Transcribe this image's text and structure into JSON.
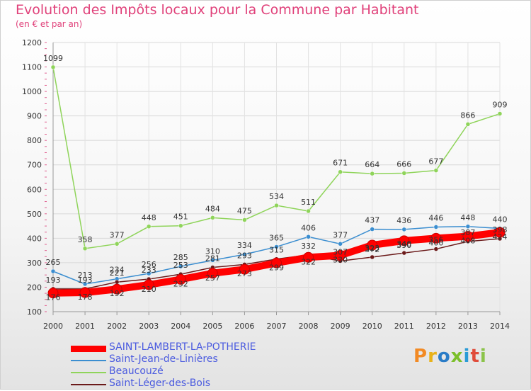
{
  "title": "Evolution des Impôts locaux pour la Commune par Habitant",
  "subtitle": "(en € et par an)",
  "logo": {
    "text": "Proxiti",
    "colors": [
      "#f28a24",
      "#e8b21a",
      "#2a7cc7",
      "#7bbf2a",
      "#2a9bd6",
      "#e04b3a",
      "#8bc34a"
    ]
  },
  "chart_data": {
    "type": "line",
    "title": "Evolution des Impôts locaux pour la Commune par Habitant",
    "subtitle": "(en € et par an)",
    "x": [
      "2000",
      "2001",
      "2002",
      "2003",
      "2004",
      "2005",
      "2006",
      "2007",
      "2008",
      "2009",
      "2010",
      "2011",
      "2012",
      "2013",
      "2014"
    ],
    "ylim": [
      100,
      1200
    ],
    "yticks": [
      100,
      200,
      300,
      400,
      500,
      600,
      700,
      800,
      900,
      1000,
      1100,
      1200
    ],
    "grid": true,
    "legend_position": "bottom-left",
    "series": [
      {
        "name": "SAINT-LAMBERT-LA-POTHERIE",
        "color": "#ff0000",
        "emphasis": true,
        "values": [
          176,
          178,
          192,
          210,
          232,
          257,
          273,
          299,
          322,
          330,
          372,
          390,
          400,
          408,
          424
        ]
      },
      {
        "name": "Saint-Jean-de-Linières",
        "color": "#3b8ed0",
        "values": [
          265,
          213,
          234,
          256,
          285,
          310,
          334,
          365,
          406,
          377,
          437,
          436,
          446,
          448,
          440
        ]
      },
      {
        "name": "Beaucouzé",
        "color": "#8fd45a",
        "values": [
          1099,
          358,
          377,
          448,
          451,
          484,
          475,
          534,
          511,
          671,
          664,
          666,
          677,
          866,
          909
        ]
      },
      {
        "name": "Saint-Léger-des-Bois",
        "color": "#6b1a1a",
        "values": [
          193,
          193,
          221,
          233,
          253,
          281,
          293,
          315,
          332,
          307,
          323,
          340,
          356,
          387,
          398
        ]
      }
    ]
  }
}
